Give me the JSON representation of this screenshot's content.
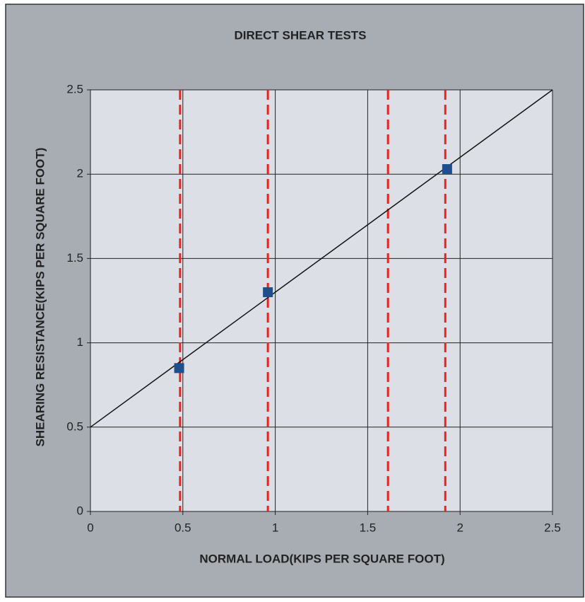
{
  "chart_data": {
    "type": "scatter",
    "title": "DIRECT SHEAR TESTS",
    "x_label": "NORMAL LOAD(KIPS PER SQUARE FOOT)",
    "y_label": "SHEARING RESISTANCE(KIPS PER SQUARE FOOT)",
    "x": [
      0.48,
      0.96,
      1.93
    ],
    "y": [
      0.85,
      1.3,
      2.03
    ],
    "color": "#1f4e8c",
    "trendline": {
      "x": [
        0,
        2.5
      ],
      "y": [
        0.5,
        2.5
      ],
      "color": "#111111"
    },
    "vlines": {
      "x": [
        0.485,
        0.96,
        1.61,
        1.92
      ],
      "color": "#e8231f"
    },
    "xlim": [
      0,
      2.5
    ],
    "ylim": [
      0,
      2.5
    ],
    "xticks": [
      0,
      0.5,
      1,
      1.5,
      2,
      2.5
    ],
    "yticks": [
      0,
      0.5,
      1,
      1.5,
      2,
      2.5
    ],
    "grid": true
  }
}
